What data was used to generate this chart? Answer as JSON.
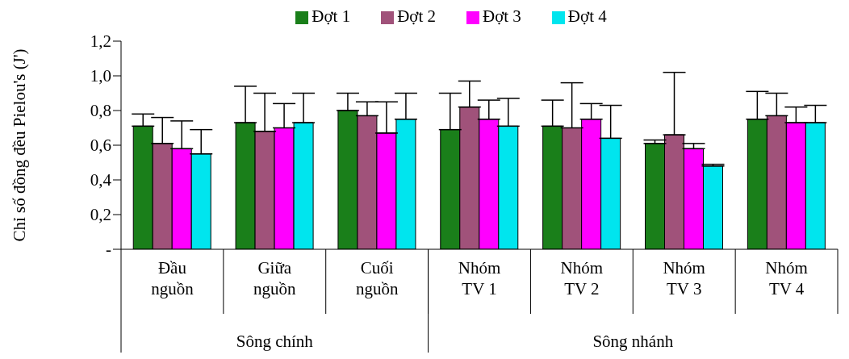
{
  "chart_data": {
    "type": "bar",
    "ylabel": "Chỉ số đồng đều Pielou's (J')",
    "categories": [
      "Đầu nguồn",
      "Giữa nguồn",
      "Cuối nguồn",
      "Nhóm TV 1",
      "Nhóm TV 2",
      "Nhóm TV 3",
      "Nhóm TV 4"
    ],
    "annotations": [
      "Sông chính",
      "Sông nhánh"
    ],
    "ylim": [
      0,
      1.2
    ],
    "yticks": [
      {
        "value": 0,
        "label": "-"
      },
      {
        "value": 0.2,
        "label": "0,2"
      },
      {
        "value": 0.4,
        "label": "0,4"
      },
      {
        "value": 0.6,
        "label": "0,6"
      },
      {
        "value": 0.8,
        "label": "0,8"
      },
      {
        "value": 1.0,
        "label": "1,0"
      },
      {
        "value": 1.2,
        "label": "1,2"
      }
    ],
    "legend": "top",
    "series": [
      {
        "name": "Đợt 1",
        "color": "#1a7f1a",
        "values": [
          0.71,
          0.73,
          0.8,
          0.69,
          0.71,
          0.61,
          0.75
        ],
        "errors": [
          [
            0.71,
            0.78
          ],
          [
            0.73,
            0.94
          ],
          [
            0.8,
            0.9
          ],
          [
            0.69,
            0.9
          ],
          [
            0.71,
            0.86
          ],
          [
            0.61,
            0.63
          ],
          [
            0.75,
            0.91
          ]
        ]
      },
      {
        "name": "Đợt 2",
        "color": "#a0527a",
        "values": [
          0.61,
          0.68,
          0.77,
          0.82,
          0.7,
          0.66,
          0.77
        ],
        "errors": [
          [
            0.61,
            0.76
          ],
          [
            0.68,
            0.9
          ],
          [
            0.77,
            0.85
          ],
          [
            0.82,
            0.97
          ],
          [
            0.7,
            0.96
          ],
          [
            0.66,
            1.02
          ],
          [
            0.77,
            0.9
          ]
        ]
      },
      {
        "name": "Đợt 3",
        "color": "#ff00ff",
        "values": [
          0.58,
          0.7,
          0.67,
          0.75,
          0.75,
          0.58,
          0.73
        ],
        "errors": [
          [
            0.58,
            0.74
          ],
          [
            0.7,
            0.84
          ],
          [
            0.67,
            0.85
          ],
          [
            0.75,
            0.86
          ],
          [
            0.75,
            0.84
          ],
          [
            0.58,
            0.61
          ],
          [
            0.73,
            0.82
          ]
        ]
      },
      {
        "name": "Đợt 4",
        "color": "#00e5ee",
        "values": [
          0.55,
          0.73,
          0.75,
          0.71,
          0.64,
          0.48,
          0.73
        ],
        "errors": [
          [
            0.55,
            0.69
          ],
          [
            0.73,
            0.9
          ],
          [
            0.75,
            0.9
          ],
          [
            0.71,
            0.87
          ],
          [
            0.64,
            0.83
          ],
          [
            0.48,
            0.49
          ],
          [
            0.73,
            0.83
          ]
        ]
      }
    ]
  }
}
